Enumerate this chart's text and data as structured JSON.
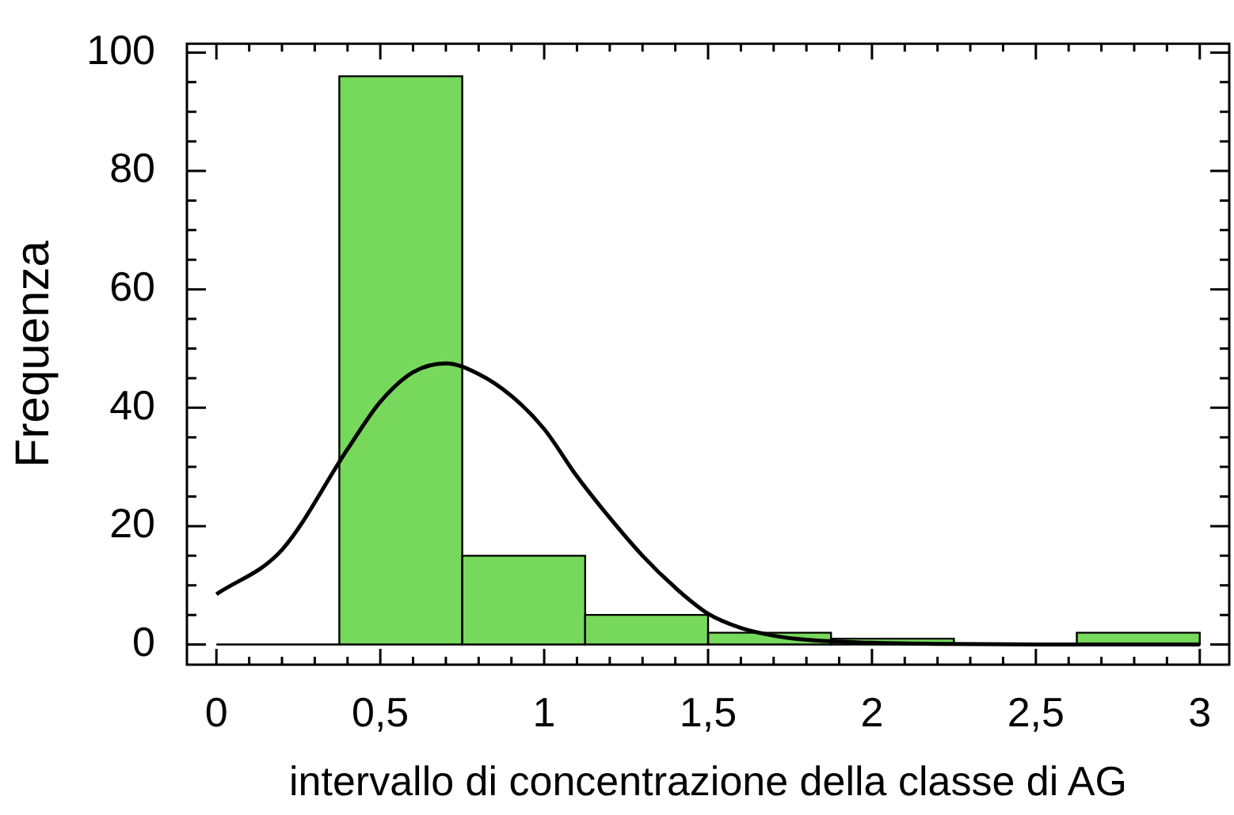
{
  "chart_data": {
    "type": "histogram",
    "xlabel": "intervallo di concentrazione della classe di AG",
    "ylabel": "Frequenza",
    "bins": [
      0,
      0.375,
      0.75,
      1.125,
      1.5,
      1.875,
      2.25,
      2.625,
      3
    ],
    "values": [
      0,
      96,
      15,
      5,
      2,
      1,
      0,
      2
    ],
    "color": "#77d95b",
    "series": [
      {
        "type": "line",
        "color": "#000000",
        "marker": "none",
        "x": [
          0,
          0.2,
          0.4,
          0.5,
          0.6,
          0.7,
          0.8,
          0.9,
          1,
          1.1,
          1.2,
          1.3,
          1.4,
          1.5,
          1.6,
          1.7,
          1.8,
          2,
          2.2,
          2.5,
          3
        ],
        "values": [
          8.5,
          16,
          33,
          41,
          46,
          47.5,
          45.7,
          42,
          36.4,
          28.4,
          21.4,
          15,
          9.6,
          5.2,
          2.8,
          1.5,
          0.8,
          0.3,
          0.1,
          0,
          0
        ]
      }
    ],
    "xlim": [
      -0.09,
      3.09
    ],
    "ylim": [
      -3.4,
      101.5
    ],
    "xticks": [
      0,
      {
        "value": 0.1,
        "label": null
      },
      {
        "value": 0.2,
        "label": null
      },
      {
        "value": 0.3,
        "label": null
      },
      {
        "value": 0.4,
        "label": null
      },
      {
        "value": 0.5,
        "label": "0,5"
      },
      {
        "value": 0.6,
        "label": null
      },
      {
        "value": 0.7,
        "label": null
      },
      {
        "value": 0.8,
        "label": null
      },
      {
        "value": 0.9,
        "label": null
      },
      1,
      {
        "value": 1.1,
        "label": null
      },
      {
        "value": 1.2,
        "label": null
      },
      {
        "value": 1.3,
        "label": null
      },
      {
        "value": 1.4,
        "label": null
      },
      {
        "value": 1.5,
        "label": "1,5"
      },
      {
        "value": 1.6,
        "label": null
      },
      {
        "value": 1.7,
        "label": null
      },
      {
        "value": 1.8,
        "label": null
      },
      {
        "value": 1.9,
        "label": null
      },
      2,
      {
        "value": 2.1,
        "label": null
      },
      {
        "value": 2.2,
        "label": null
      },
      {
        "value": 2.3,
        "label": null
      },
      {
        "value": 2.4,
        "label": null
      },
      {
        "value": 2.5,
        "label": "2,5"
      },
      {
        "value": 2.6,
        "label": null
      },
      {
        "value": 2.7,
        "label": null
      },
      {
        "value": 2.8,
        "label": null
      },
      {
        "value": 2.9,
        "label": null
      },
      3
    ],
    "yticks": [
      0,
      {
        "value": 5,
        "label": null
      },
      {
        "value": 10,
        "label": null
      },
      {
        "value": 15,
        "label": null
      },
      20,
      {
        "value": 25,
        "label": null
      },
      {
        "value": 30,
        "label": null
      },
      {
        "value": 35,
        "label": null
      },
      40,
      {
        "value": 45,
        "label": null
      },
      {
        "value": 50,
        "label": null
      },
      {
        "value": 55,
        "label": null
      },
      60,
      {
        "value": 65,
        "label": null
      },
      {
        "value": 70,
        "label": null
      },
      {
        "value": 75,
        "label": null
      },
      80,
      {
        "value": 85,
        "label": null
      },
      {
        "value": 90,
        "label": null
      },
      {
        "value": 95,
        "label": null
      },
      100
    ]
  }
}
